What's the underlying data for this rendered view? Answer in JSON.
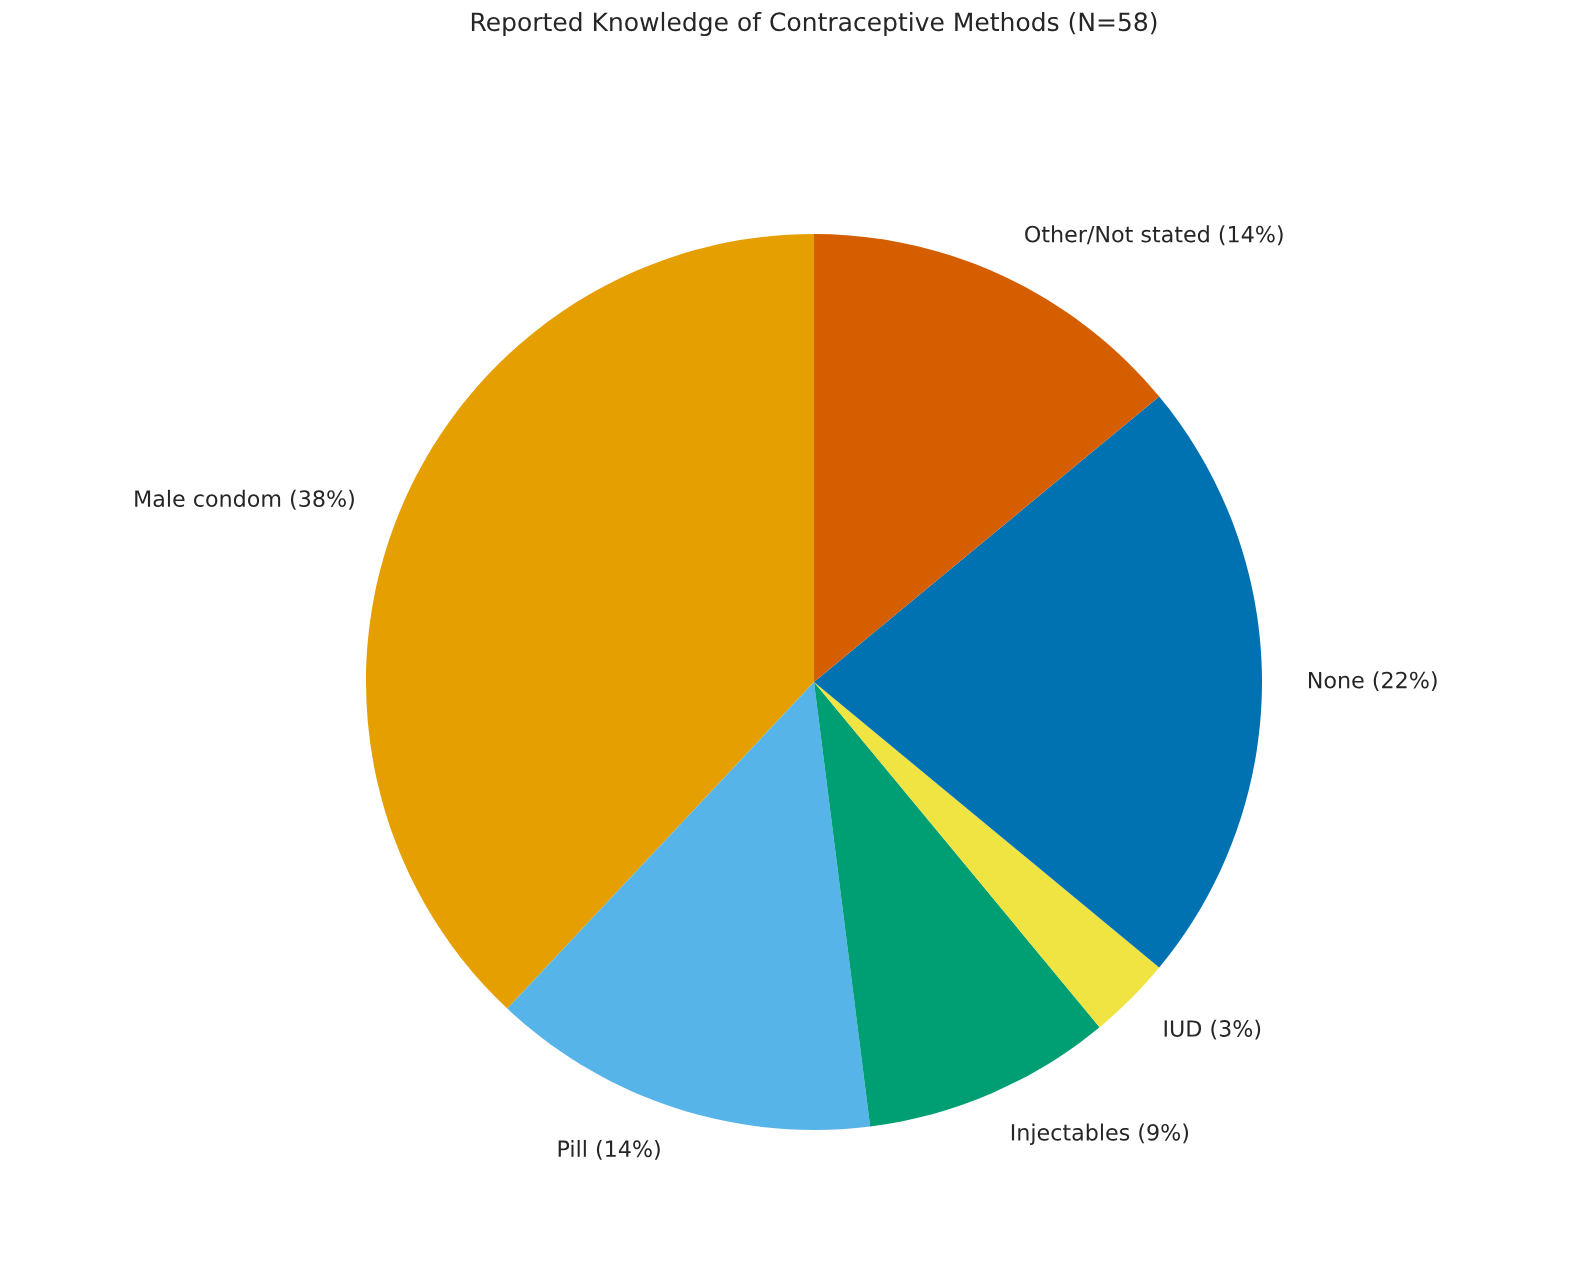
{
  "chart_data": {
    "type": "pie",
    "title": "Reported Knowledge of Contraceptive Methods (N=58)",
    "categories": [
      "Male condom (38%)",
      "Pill (14%)",
      "Injectables (9%)",
      "IUD (3%)",
      "None (22%)",
      "Other/Not stated (14%)"
    ],
    "values": [
      38,
      14,
      9,
      3,
      22,
      14
    ],
    "colors": [
      "#e69f00",
      "#56b4e9",
      "#009e73",
      "#f0e442",
      "#0072b2",
      "#d55e00"
    ]
  }
}
